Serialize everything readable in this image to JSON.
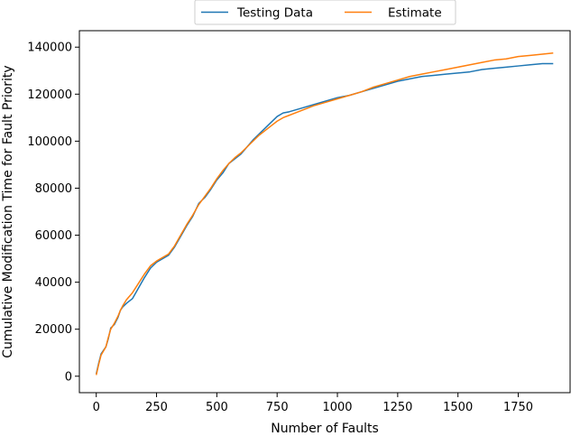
{
  "chart_data": {
    "type": "line",
    "xlabel": "Number of Faults",
    "ylabel": "Cumulative Modification Time for Fault Priority",
    "xlim": [
      -70,
      1965
    ],
    "ylim": [
      -7000,
      147000
    ],
    "xticks": [
      0,
      250,
      500,
      750,
      1000,
      1250,
      1500,
      1750
    ],
    "yticks": [
      0,
      20000,
      40000,
      60000,
      80000,
      100000,
      120000,
      140000
    ],
    "grid": false,
    "legend_placement": "top-center (outside plot)",
    "series": [
      {
        "name": "Testing Data",
        "color": "#1f77b4",
        "x": [
          0,
          10,
          20,
          40,
          50,
          60,
          75,
          90,
          100,
          110,
          125,
          150,
          175,
          200,
          225,
          250,
          275,
          300,
          325,
          350,
          375,
          400,
          425,
          450,
          475,
          500,
          525,
          550,
          575,
          600,
          625,
          650,
          675,
          700,
          725,
          750,
          775,
          800,
          850,
          900,
          950,
          1000,
          1050,
          1100,
          1150,
          1200,
          1250,
          1300,
          1350,
          1400,
          1450,
          1500,
          1550,
          1600,
          1650,
          1700,
          1750,
          1800,
          1850,
          1895
        ],
        "values": [
          1000,
          5500,
          9500,
          12500,
          16000,
          20500,
          22000,
          25000,
          28000,
          29500,
          31000,
          33000,
          37500,
          42000,
          46000,
          48500,
          50000,
          51500,
          55000,
          59500,
          64000,
          68000,
          73500,
          76000,
          79500,
          83500,
          86500,
          90500,
          92500,
          94500,
          97500,
          100500,
          103000,
          105500,
          108000,
          110500,
          112000,
          112500,
          114000,
          115500,
          117000,
          118500,
          119500,
          121000,
          122500,
          124000,
          125500,
          126500,
          127500,
          128000,
          128500,
          129000,
          129500,
          130500,
          131000,
          131500,
          132000,
          132500,
          133000,
          133000
        ]
      },
      {
        "name": "Estimate",
        "color": "#ff7f0e",
        "x": [
          0,
          10,
          20,
          40,
          50,
          60,
          75,
          90,
          100,
          110,
          125,
          150,
          175,
          200,
          225,
          250,
          275,
          300,
          325,
          350,
          375,
          400,
          425,
          450,
          475,
          500,
          525,
          550,
          575,
          600,
          625,
          650,
          675,
          700,
          725,
          750,
          775,
          800,
          850,
          900,
          950,
          1000,
          1050,
          1100,
          1150,
          1200,
          1250,
          1300,
          1350,
          1400,
          1450,
          1500,
          1550,
          1600,
          1650,
          1700,
          1750,
          1800,
          1850,
          1895
        ],
        "values": [
          500,
          5000,
          9000,
          12500,
          16500,
          20000,
          22500,
          25500,
          28000,
          30000,
          32500,
          35500,
          39500,
          43500,
          47000,
          49000,
          50500,
          52000,
          55500,
          60000,
          64500,
          68500,
          73000,
          76500,
          80000,
          84000,
          87500,
          90500,
          93000,
          95000,
          97500,
          100000,
          102500,
          104500,
          106500,
          108500,
          110000,
          111000,
          113000,
          115000,
          116500,
          118000,
          119500,
          121000,
          123000,
          124500,
          126000,
          127500,
          128500,
          129500,
          130500,
          131500,
          132500,
          133500,
          134500,
          135000,
          136000,
          136500,
          137000,
          137500
        ]
      }
    ]
  }
}
